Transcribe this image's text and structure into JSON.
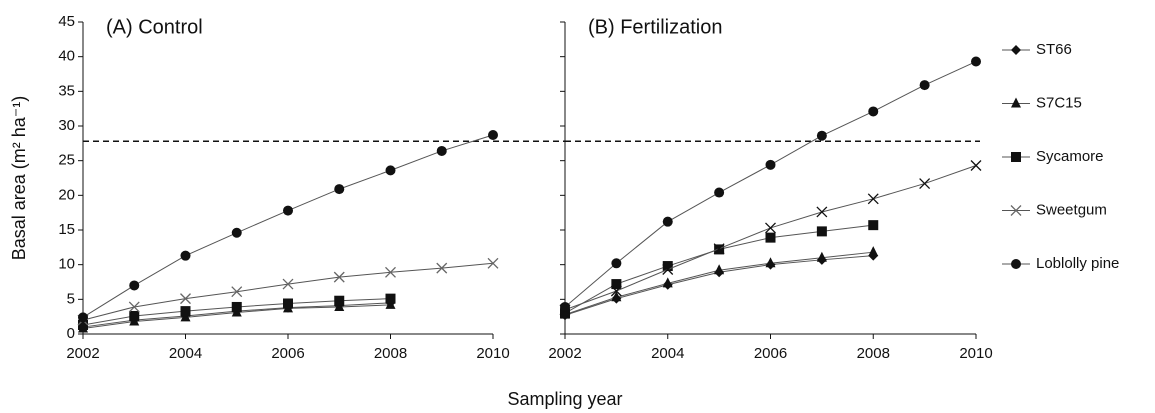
{
  "chart_data": [
    {
      "type": "line",
      "title": "(A) Control",
      "ylabel": "Basal area (m² ha⁻¹)",
      "xlabel": "Sampling year",
      "x": [
        2002,
        2003,
        2004,
        2005,
        2006,
        2007,
        2008,
        2009,
        2010
      ],
      "xlim": [
        2002,
        2010
      ],
      "xticks": [
        2002,
        2004,
        2006,
        2008,
        2010
      ],
      "ylim": [
        0,
        45
      ],
      "yticks": [
        0,
        5,
        10,
        15,
        20,
        25,
        30,
        35,
        40,
        45
      ],
      "hline": 27.8,
      "legend": "right",
      "series": [
        {
          "name": "ST66",
          "color": "#111111",
          "marker": "diamond",
          "values": [
            1.0,
            2.0,
            2.6,
            3.3,
            3.8,
            4.1,
            4.5,
            null,
            null
          ]
        },
        {
          "name": "S7C15",
          "color": "#111111",
          "marker": "triangle",
          "values": [
            0.8,
            1.8,
            2.4,
            3.1,
            3.7,
            3.9,
            4.2,
            null,
            null
          ]
        },
        {
          "name": "Sycamore",
          "color": "#111111",
          "marker": "square",
          "values": [
            1.3,
            2.6,
            3.3,
            3.9,
            4.4,
            4.8,
            5.1,
            null,
            null
          ]
        },
        {
          "name": "Sweetgum",
          "color": "#666666",
          "marker": "x",
          "values": [
            2.0,
            3.9,
            5.1,
            6.1,
            7.2,
            8.2,
            8.9,
            9.5,
            10.2
          ]
        },
        {
          "name": "Loblolly pine",
          "color": "#111111",
          "marker": "circle",
          "values": [
            2.4,
            7.0,
            11.3,
            14.6,
            17.8,
            20.9,
            23.6,
            26.4,
            28.7
          ]
        }
      ]
    },
    {
      "type": "line",
      "title": "(B) Fertilization",
      "x": [
        2002,
        2003,
        2004,
        2005,
        2006,
        2007,
        2008,
        2009,
        2010
      ],
      "xlim": [
        2002,
        2010
      ],
      "xticks": [
        2002,
        2004,
        2006,
        2008,
        2010
      ],
      "ylim": [
        0,
        45
      ],
      "yticks": [
        0,
        5,
        10,
        15,
        20,
        25,
        30,
        35,
        40,
        45
      ],
      "hline": 27.8,
      "series": [
        {
          "color": "#111111",
          "marker": "diamond",
          "values": [
            2.7,
            5.1,
            7.1,
            8.9,
            10.0,
            10.7,
            11.3,
            null,
            null
          ]
        },
        {
          "color": "#111111",
          "marker": "triangle",
          "values": [
            2.8,
            5.3,
            7.3,
            9.2,
            10.2,
            11.0,
            11.8,
            null,
            null
          ]
        },
        {
          "color": "#111111",
          "marker": "square",
          "values": [
            3.0,
            7.2,
            9.8,
            12.2,
            13.9,
            14.8,
            15.7,
            null,
            null
          ]
        },
        {
          "color": "#111111",
          "marker": "x",
          "values": [
            3.5,
            6.2,
            9.3,
            12.3,
            15.3,
            17.6,
            19.5,
            21.7,
            24.3
          ]
        },
        {
          "color": "#111111",
          "marker": "circle",
          "values": [
            3.9,
            10.2,
            16.2,
            20.4,
            24.4,
            28.6,
            32.1,
            35.9,
            39.3
          ]
        }
      ]
    }
  ]
}
